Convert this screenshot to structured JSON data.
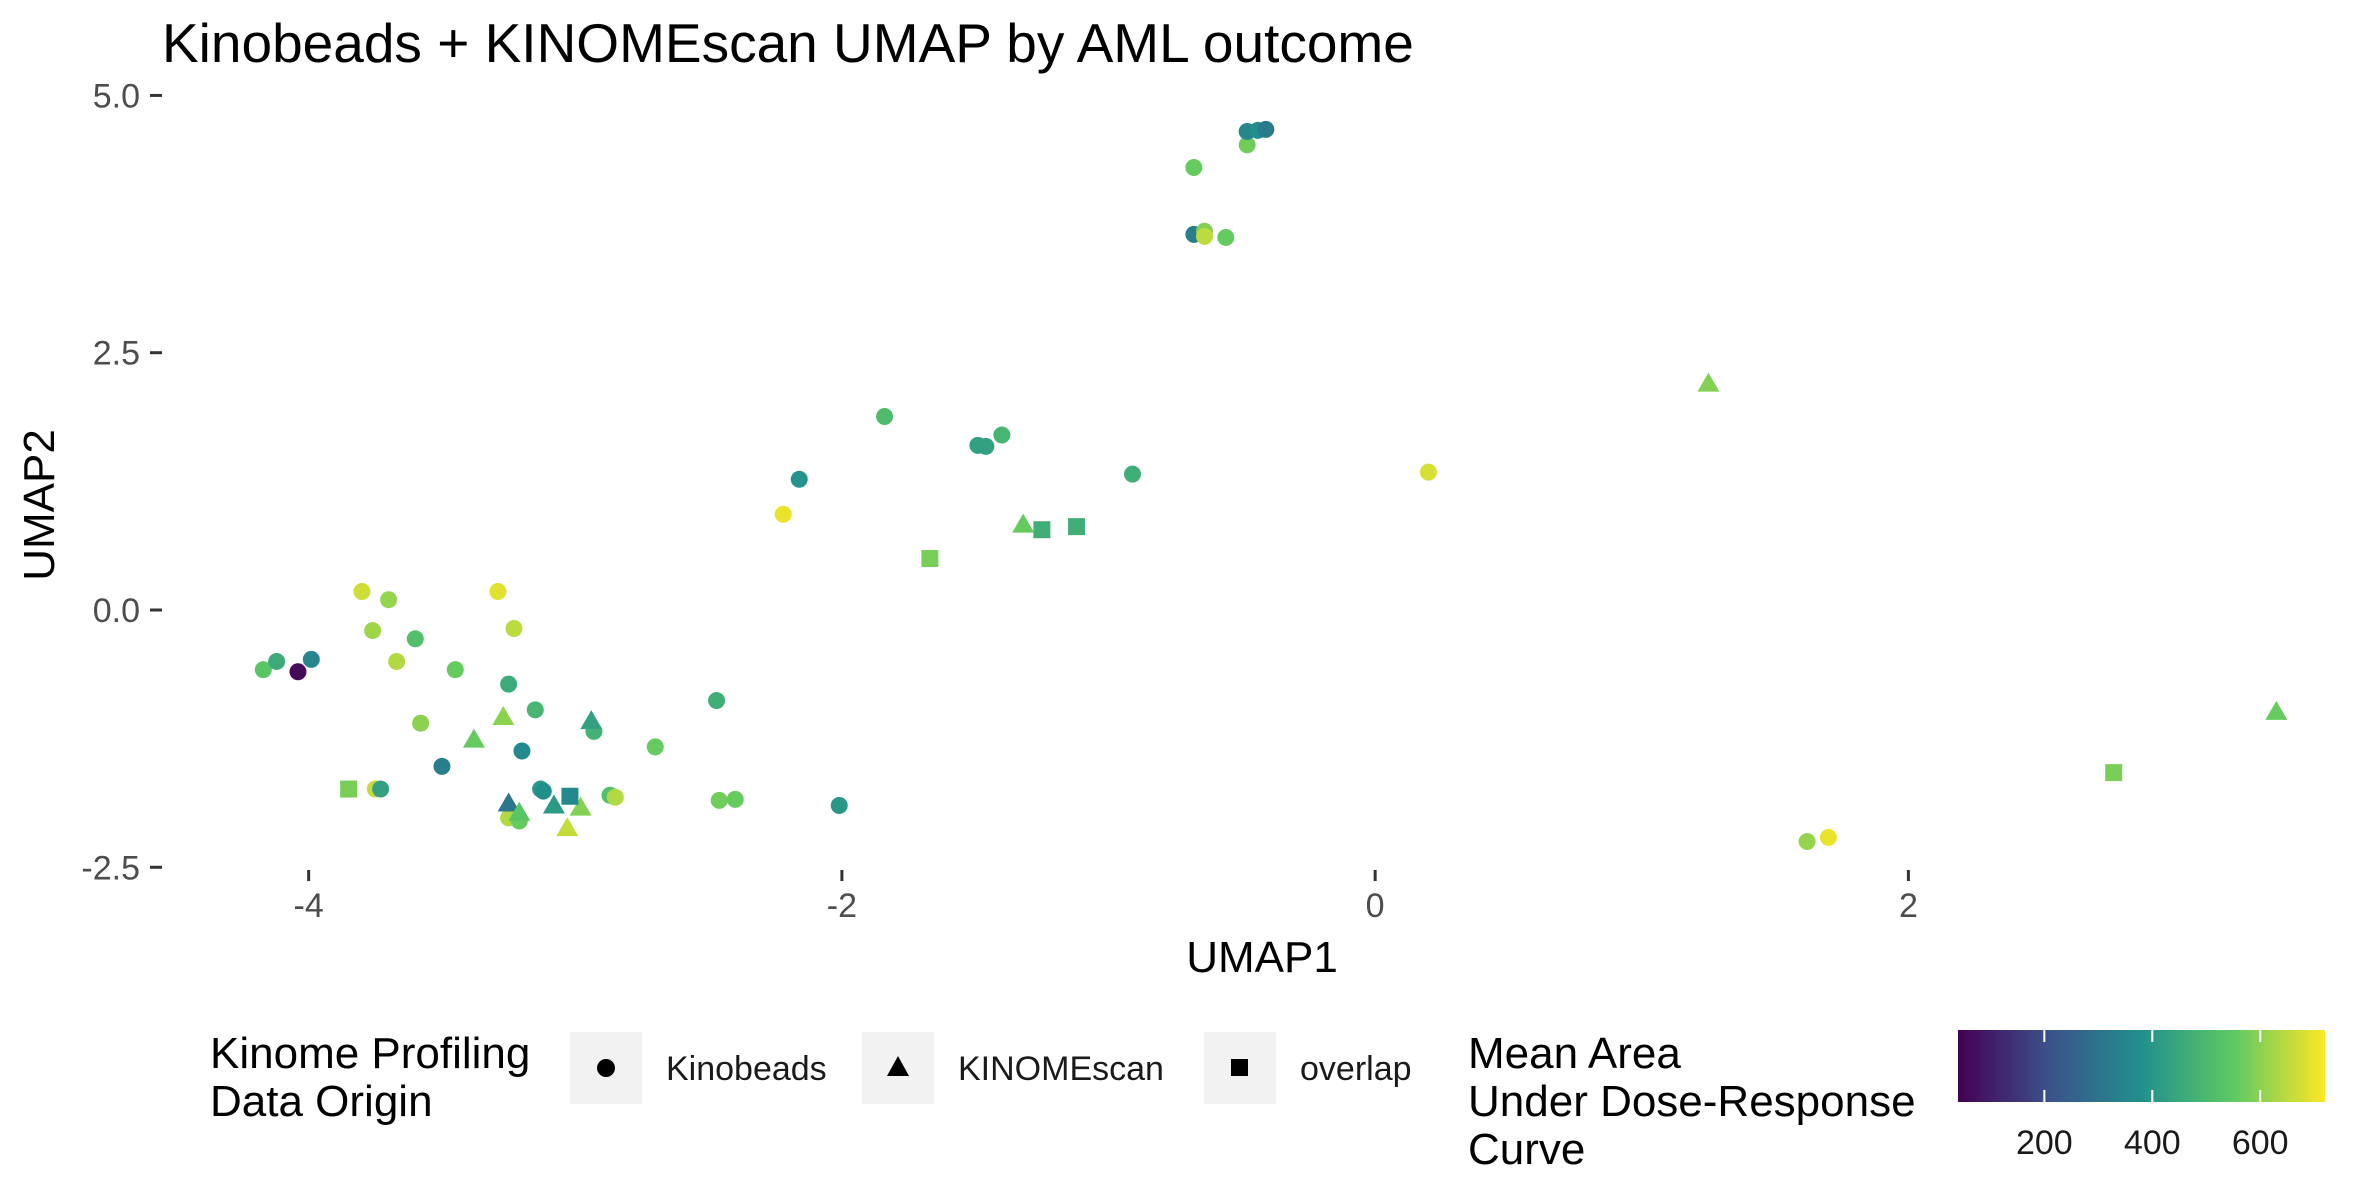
{
  "chart_data": {
    "type": "scatter",
    "title": "Kinobeads + KINOMEscan UMAP by AML outcome",
    "xlabel": "UMAP1",
    "ylabel": "UMAP2",
    "xlim": [
      -4.55,
      3.6
    ],
    "ylim": [
      -2.75,
      5.15
    ],
    "x_ticks": [
      -4,
      -2,
      0,
      2
    ],
    "x_tick_labels": [
      "-4",
      "-2",
      "0",
      "2"
    ],
    "y_ticks": [
      -2.5,
      0.0,
      2.5,
      5.0
    ],
    "y_tick_labels": [
      "-2.5",
      "0.0",
      "2.5",
      "5.0"
    ],
    "grid": false,
    "shape_legend": {
      "title": [
        "Kinome Profiling",
        "Data Origin"
      ],
      "entries": [
        {
          "label": "Kinobeads",
          "shape": "circle"
        },
        {
          "label": "KINOMEscan",
          "shape": "triangle"
        },
        {
          "label": "overlap",
          "shape": "square"
        }
      ]
    },
    "color_legend": {
      "title": [
        "Mean Area",
        "Under Dose-Response",
        "Curve"
      ],
      "min": 40,
      "max": 720,
      "ticks": [
        200,
        400,
        600
      ],
      "tick_labels": [
        "200",
        "400",
        "600"
      ],
      "palette": [
        "#440154",
        "#3b528b",
        "#21908d",
        "#5dc963",
        "#fde725"
      ]
    },
    "points": [
      {
        "x": -4.17,
        "y": -0.58,
        "shape": "circle",
        "color": 540
      },
      {
        "x": -4.12,
        "y": -0.5,
        "shape": "circle",
        "color": 460
      },
      {
        "x": -4.04,
        "y": -0.6,
        "shape": "circle",
        "color": 60
      },
      {
        "x": -3.99,
        "y": -0.48,
        "shape": "circle",
        "color": 350
      },
      {
        "x": -3.8,
        "y": 0.18,
        "shape": "circle",
        "color": 670
      },
      {
        "x": -3.76,
        "y": -0.2,
        "shape": "circle",
        "color": 620
      },
      {
        "x": -3.7,
        "y": 0.1,
        "shape": "circle",
        "color": 610
      },
      {
        "x": -3.67,
        "y": -0.5,
        "shape": "circle",
        "color": 640
      },
      {
        "x": -3.6,
        "y": -0.28,
        "shape": "circle",
        "color": 520
      },
      {
        "x": -3.58,
        "y": -1.1,
        "shape": "circle",
        "color": 600
      },
      {
        "x": -3.45,
        "y": -0.58,
        "shape": "circle",
        "color": 560
      },
      {
        "x": -3.5,
        "y": -1.52,
        "shape": "circle",
        "color": 330
      },
      {
        "x": -3.75,
        "y": -1.74,
        "shape": "circle",
        "color": 660
      },
      {
        "x": -3.73,
        "y": -1.74,
        "shape": "circle",
        "color": 430
      },
      {
        "x": -3.29,
        "y": 0.18,
        "shape": "circle",
        "color": 690
      },
      {
        "x": -3.23,
        "y": -0.18,
        "shape": "circle",
        "color": 650
      },
      {
        "x": -3.25,
        "y": -0.72,
        "shape": "circle",
        "color": 460
      },
      {
        "x": -3.2,
        "y": -1.37,
        "shape": "circle",
        "color": 360
      },
      {
        "x": -3.15,
        "y": -0.97,
        "shape": "circle",
        "color": 490
      },
      {
        "x": -3.13,
        "y": -1.74,
        "shape": "circle",
        "color": 410
      },
      {
        "x": -3.12,
        "y": -1.76,
        "shape": "circle",
        "color": 380
      },
      {
        "x": -2.93,
        "y": -1.18,
        "shape": "circle",
        "color": 480
      },
      {
        "x": -2.87,
        "y": -1.8,
        "shape": "circle",
        "color": 520
      },
      {
        "x": -2.85,
        "y": -1.82,
        "shape": "circle",
        "color": 640
      },
      {
        "x": -3.25,
        "y": -2.02,
        "shape": "circle",
        "color": 640
      },
      {
        "x": -3.21,
        "y": -2.05,
        "shape": "circle",
        "color": 560
      },
      {
        "x": -2.7,
        "y": -1.33,
        "shape": "circle",
        "color": 560
      },
      {
        "x": -2.47,
        "y": -0.88,
        "shape": "circle",
        "color": 470
      },
      {
        "x": -2.46,
        "y": -1.85,
        "shape": "circle",
        "color": 570
      },
      {
        "x": -2.4,
        "y": -1.84,
        "shape": "circle",
        "color": 560
      },
      {
        "x": -2.01,
        "y": -1.9,
        "shape": "circle",
        "color": 400
      },
      {
        "x": -2.22,
        "y": 0.93,
        "shape": "circle",
        "color": 700
      },
      {
        "x": -2.16,
        "y": 1.27,
        "shape": "circle",
        "color": 390
      },
      {
        "x": -1.84,
        "y": 1.88,
        "shape": "circle",
        "color": 510
      },
      {
        "x": -1.49,
        "y": 1.6,
        "shape": "circle",
        "color": 430
      },
      {
        "x": -1.46,
        "y": 1.59,
        "shape": "circle",
        "color": 430
      },
      {
        "x": -1.4,
        "y": 1.7,
        "shape": "circle",
        "color": 490
      },
      {
        "x": -0.91,
        "y": 1.32,
        "shape": "circle",
        "color": 470
      },
      {
        "x": -0.68,
        "y": 4.3,
        "shape": "circle",
        "color": 560
      },
      {
        "x": -0.68,
        "y": 3.65,
        "shape": "circle",
        "color": 330
      },
      {
        "x": -0.64,
        "y": 3.68,
        "shape": "circle",
        "color": 590
      },
      {
        "x": -0.64,
        "y": 3.63,
        "shape": "circle",
        "color": 650
      },
      {
        "x": -0.56,
        "y": 3.62,
        "shape": "circle",
        "color": 560
      },
      {
        "x": -0.48,
        "y": 4.52,
        "shape": "circle",
        "color": 570
      },
      {
        "x": -0.48,
        "y": 4.65,
        "shape": "circle",
        "color": 350
      },
      {
        "x": -0.44,
        "y": 4.66,
        "shape": "circle",
        "color": 380
      },
      {
        "x": -0.41,
        "y": 4.67,
        "shape": "circle",
        "color": 320
      },
      {
        "x": 0.2,
        "y": 1.34,
        "shape": "circle",
        "color": 680
      },
      {
        "x": 1.62,
        "y": -2.25,
        "shape": "circle",
        "color": 610
      },
      {
        "x": 1.7,
        "y": -2.21,
        "shape": "circle",
        "color": 700
      },
      {
        "x": -3.38,
        "y": -1.26,
        "shape": "triangle",
        "color": 560
      },
      {
        "x": -3.27,
        "y": -1.04,
        "shape": "triangle",
        "color": 600
      },
      {
        "x": -2.94,
        "y": -1.08,
        "shape": "triangle",
        "color": 430
      },
      {
        "x": -3.25,
        "y": -1.88,
        "shape": "triangle",
        "color": 310
      },
      {
        "x": -3.21,
        "y": -1.97,
        "shape": "triangle",
        "color": 540
      },
      {
        "x": -3.08,
        "y": -1.9,
        "shape": "triangle",
        "color": 410
      },
      {
        "x": -3.03,
        "y": -2.12,
        "shape": "triangle",
        "color": 660
      },
      {
        "x": -2.98,
        "y": -1.92,
        "shape": "triangle",
        "color": 590
      },
      {
        "x": -1.32,
        "y": 0.83,
        "shape": "triangle",
        "color": 560
      },
      {
        "x": 1.25,
        "y": 2.2,
        "shape": "triangle",
        "color": 590
      },
      {
        "x": 3.38,
        "y": -0.99,
        "shape": "triangle",
        "color": 560
      },
      {
        "x": -3.85,
        "y": -1.74,
        "shape": "square",
        "color": 580
      },
      {
        "x": -3.02,
        "y": -1.81,
        "shape": "square",
        "color": 360
      },
      {
        "x": -1.67,
        "y": 0.5,
        "shape": "square",
        "color": 580
      },
      {
        "x": -1.25,
        "y": 0.78,
        "shape": "square",
        "color": 470
      },
      {
        "x": -1.12,
        "y": 0.81,
        "shape": "square",
        "color": 470
      },
      {
        "x": 2.77,
        "y": -1.58,
        "shape": "square",
        "color": 580
      }
    ]
  }
}
